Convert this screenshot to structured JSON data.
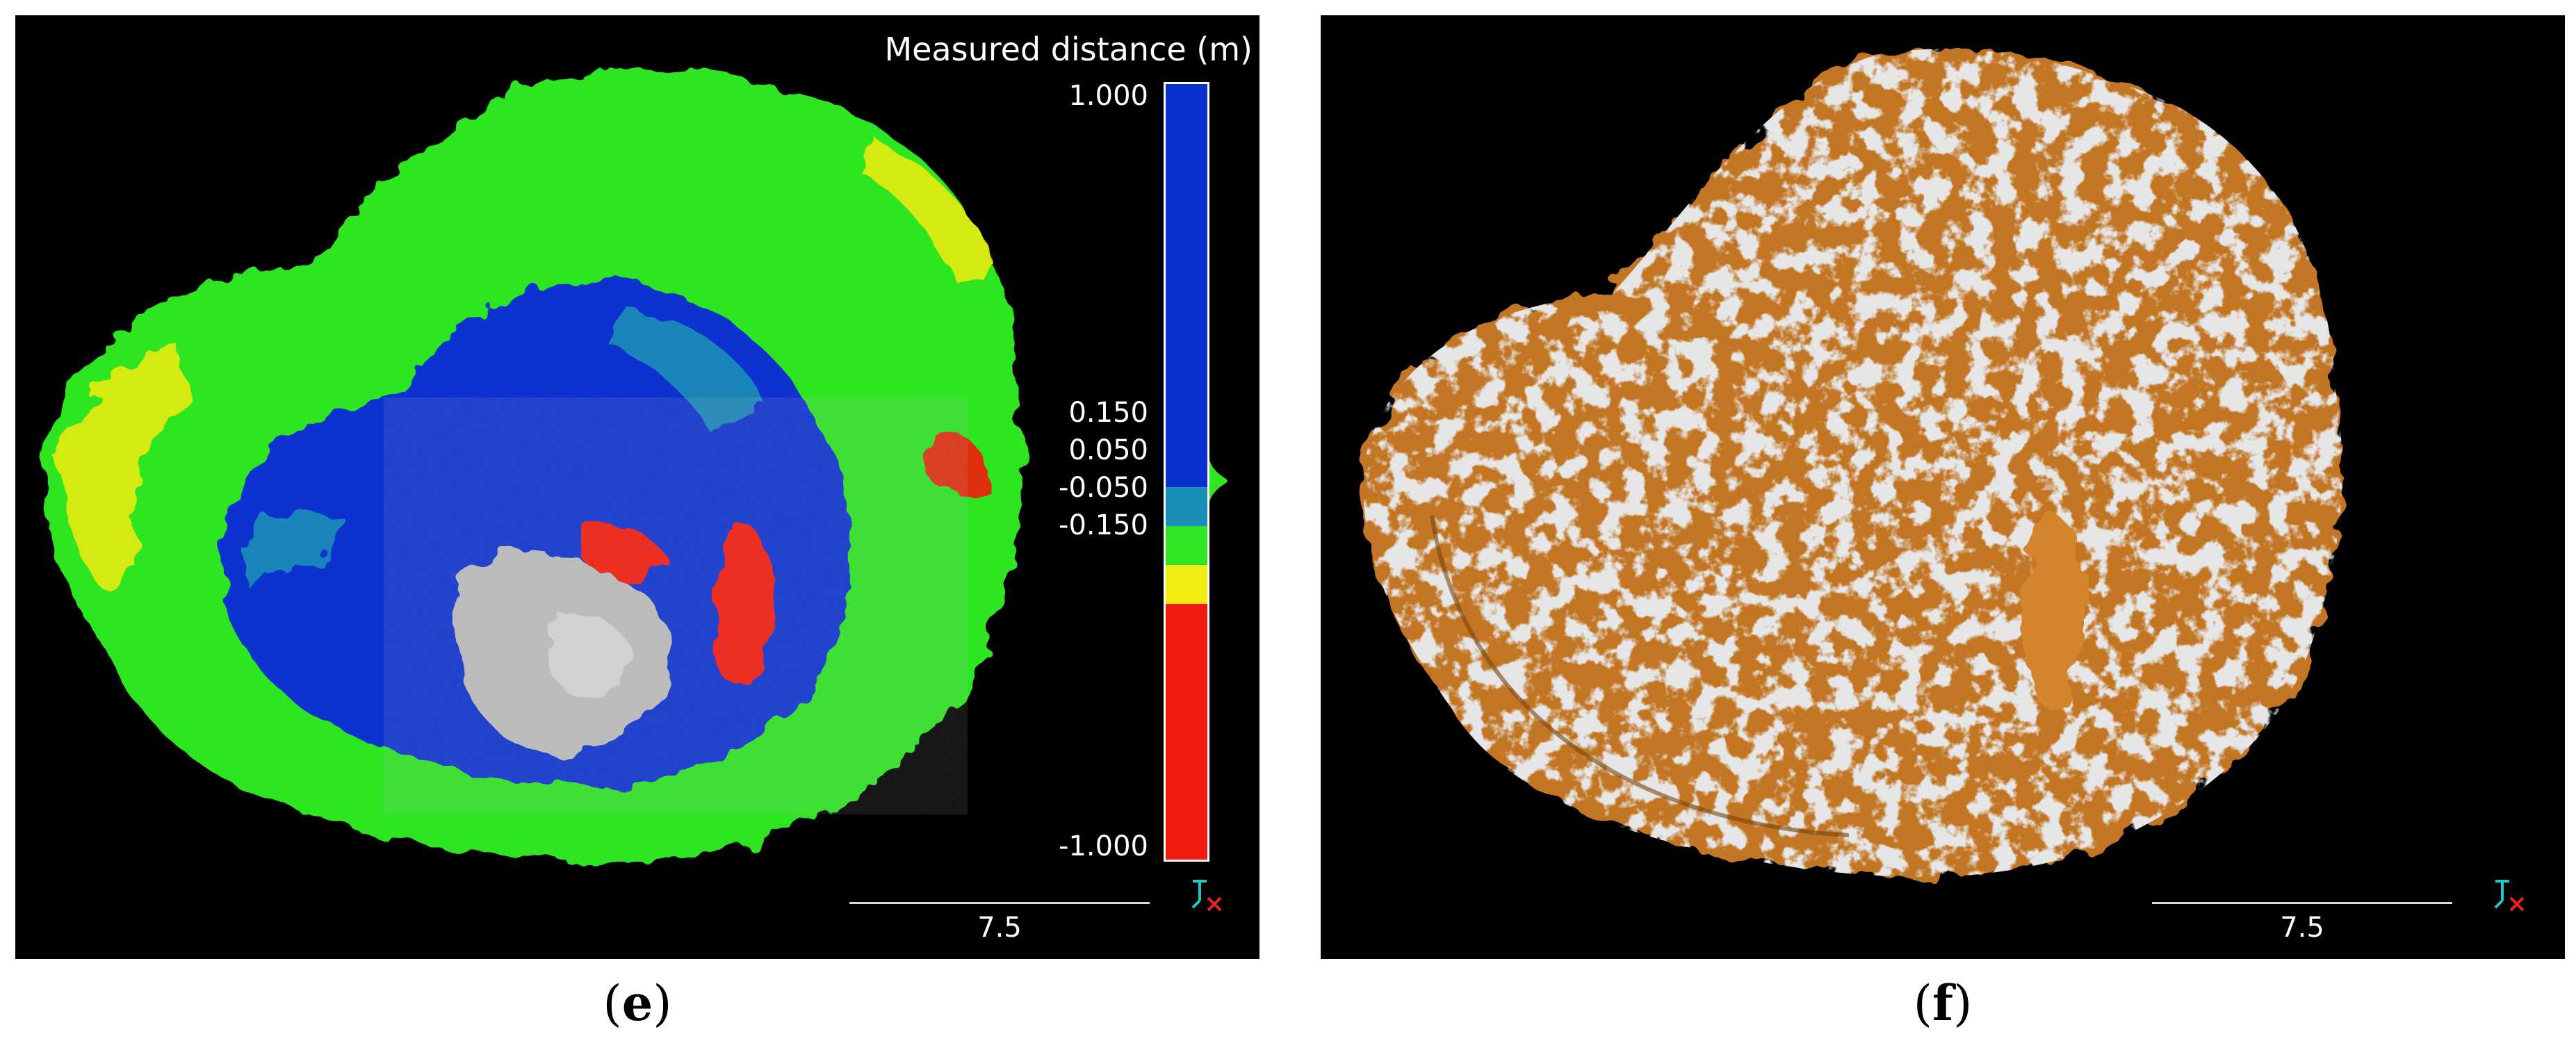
{
  "panel_e": {
    "colorbar_title": "Measured distance (m)",
    "colorbar_labels": [
      "1.000",
      "0.150",
      "0.050",
      "-0.050",
      "-0.150",
      "-1.000"
    ],
    "colorbar_colors": {
      "top": "#0a31d0",
      "teal": "#1a8fb8",
      "green": "#2fe524",
      "yellow": "#f2ec10",
      "red": "#f21b0e"
    },
    "scale_value": "7.5",
    "axis_icon": "axis-triad-icon",
    "caption": {
      "open": "(",
      "letter": "e",
      "close": ")"
    }
  },
  "panel_f": {
    "scale_value": "7.5",
    "axis_icon": "axis-triad-icon",
    "colors": {
      "overlay": "#c27420",
      "base": "#c9c9c9"
    },
    "caption": {
      "open": "(",
      "letter": "f",
      "close": ")"
    }
  }
}
